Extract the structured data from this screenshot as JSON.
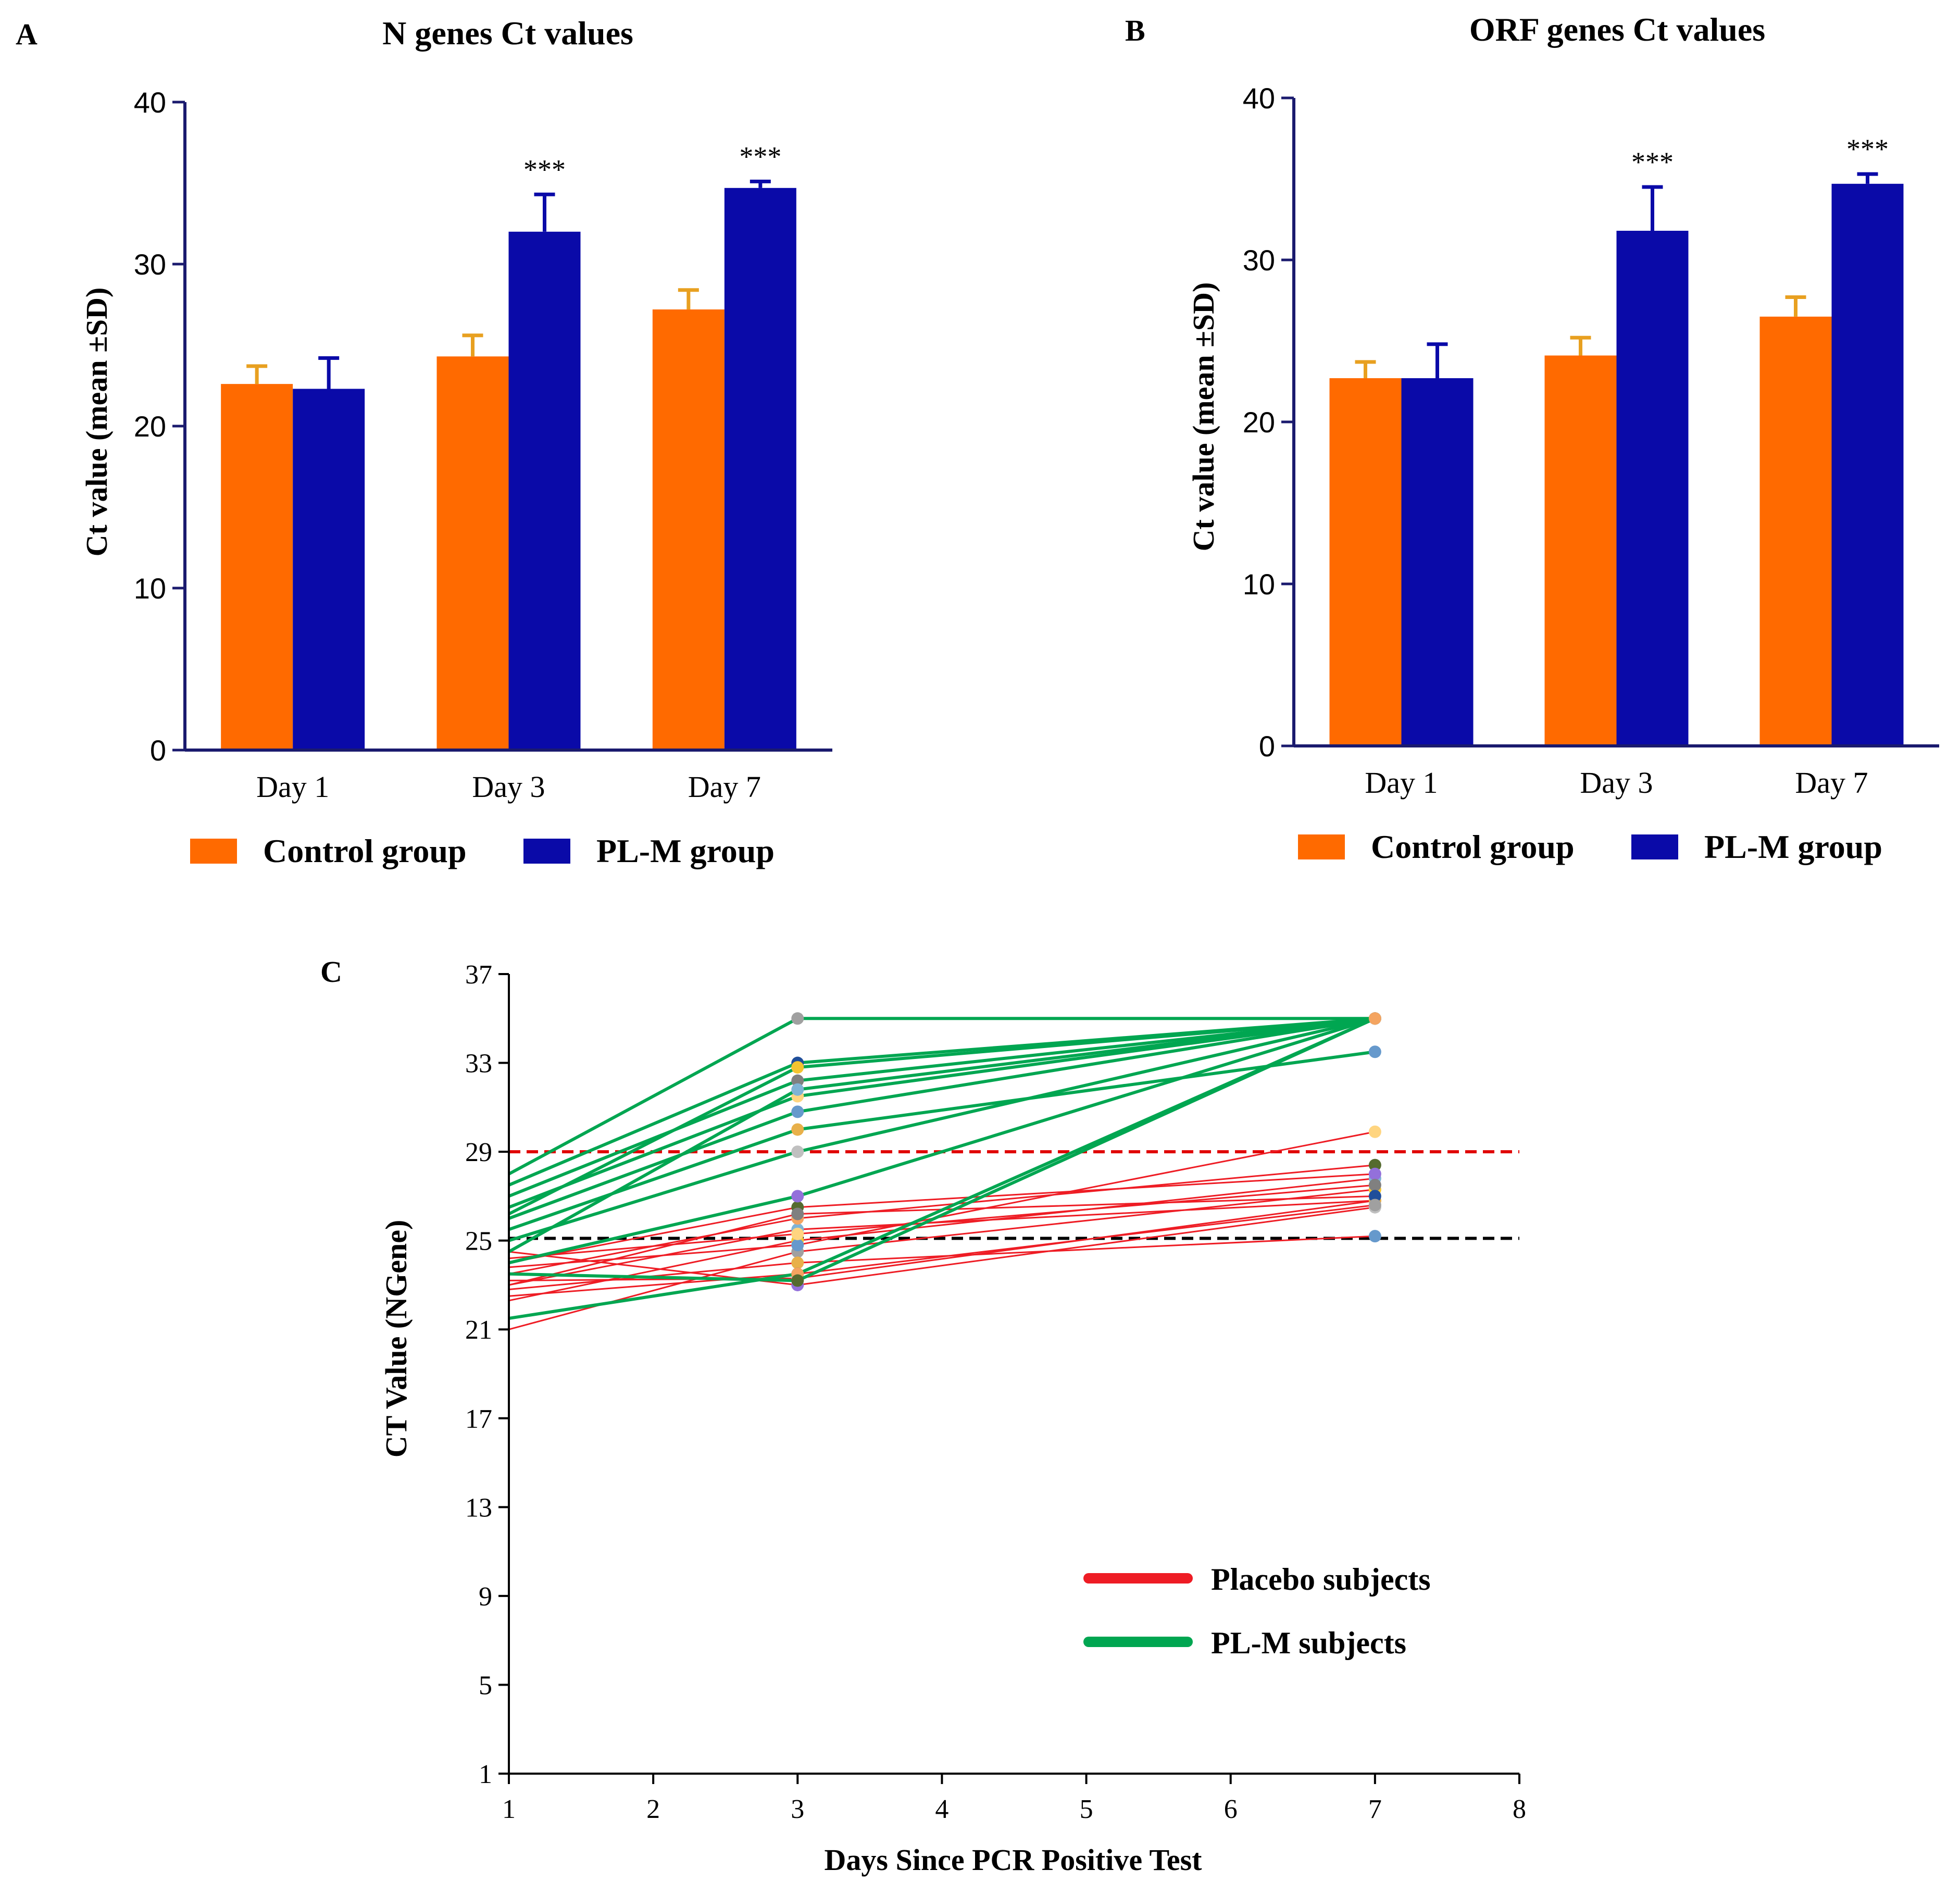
{
  "colors": {
    "control": "#FF6A00",
    "control_err": "#E8A020",
    "plm": "#0A0AA8",
    "axis": "#1a1a6e",
    "placebo_line": "#EE1C24",
    "plm_line": "#00A651",
    "ref_high": "#E00000",
    "ref_low": "#000000"
  },
  "chart_data": [
    {
      "panel": "A",
      "type": "bar",
      "title": "N genes Ct values",
      "ylabel": "Ct value (mean ±SD)",
      "xlabel": "",
      "ylim": [
        0,
        40
      ],
      "yticks": [
        "0",
        "10",
        "20",
        "30",
        "40"
      ],
      "categories": [
        "Day 1",
        "Day 3",
        "Day 7"
      ],
      "series": [
        {
          "name": "Control group",
          "values": [
            22.6,
            24.3,
            27.2
          ],
          "sd": [
            1.1,
            1.3,
            1.2
          ]
        },
        {
          "name": "PL-M group",
          "values": [
            22.3,
            32.0,
            34.7
          ],
          "sd": [
            1.9,
            2.3,
            0.4
          ]
        }
      ],
      "annotations": [
        "",
        "***",
        "***"
      ]
    },
    {
      "panel": "B",
      "type": "bar",
      "title": "ORF genes Ct values",
      "ylabel": "Ct value (mean ±SD)",
      "xlabel": "",
      "ylim": [
        0,
        40
      ],
      "yticks": [
        "0",
        "10",
        "20",
        "30",
        "40"
      ],
      "categories": [
        "Day 1",
        "Day 3",
        "Day 7"
      ],
      "series": [
        {
          "name": "Control group",
          "values": [
            22.7,
            24.1,
            26.5
          ],
          "sd": [
            1.0,
            1.1,
            1.2
          ]
        },
        {
          "name": "PL-M group",
          "values": [
            22.7,
            31.8,
            34.7
          ],
          "sd": [
            2.1,
            2.7,
            0.6
          ]
        }
      ],
      "annotations": [
        "",
        "***",
        "***"
      ]
    },
    {
      "panel": "C",
      "type": "line",
      "title": "",
      "xlabel": "Days Since PCR Positive Test",
      "ylabel": "CT Value (NGene)",
      "xlim": [
        1,
        8
      ],
      "ylim": [
        1,
        37
      ],
      "xticks": [
        "1",
        "2",
        "3",
        "4",
        "5",
        "6",
        "7",
        "8"
      ],
      "yticks": [
        "1",
        "5",
        "9",
        "13",
        "17",
        "21",
        "25",
        "29",
        "33",
        "37"
      ],
      "x": [
        1,
        3,
        7
      ],
      "reference_lines": [
        29,
        25.1
      ],
      "legend": [
        "Placebo subjects",
        "PL-M subjects"
      ],
      "series": [
        {
          "name": "Placebo subjects",
          "subjects": [
            [
              21.0,
              24.5,
              27.3
            ],
            [
              22.3,
              25.0,
              27.8
            ],
            [
              23.0,
              25.5,
              26.8
            ],
            [
              23.5,
              26.0,
              28.4
            ],
            [
              24.0,
              26.5,
              28.0
            ],
            [
              24.5,
              23.0,
              26.5
            ],
            [
              23.2,
              23.3,
              26.8
            ],
            [
              22.8,
              24.0,
              25.2
            ],
            [
              23.8,
              24.8,
              29.9
            ],
            [
              24.2,
              25.3,
              27.5
            ],
            [
              23.0,
              26.2,
              27.0
            ],
            [
              22.5,
              23.5,
              26.6
            ]
          ]
        },
        {
          "name": "PL-M subjects",
          "subjects": [
            [
              21.5,
              23.5,
              35.0
            ],
            [
              23.5,
              23.2,
              35.0
            ],
            [
              24.0,
              27.0,
              35.0
            ],
            [
              25.0,
              29.0,
              35.0
            ],
            [
              25.5,
              30.0,
              33.5
            ],
            [
              26.0,
              30.8,
              35.0
            ],
            [
              26.5,
              31.5,
              35.0
            ],
            [
              27.0,
              32.2,
              35.0
            ],
            [
              27.5,
              33.0,
              35.0
            ],
            [
              28.0,
              35.0,
              35.0
            ],
            [
              26.2,
              32.8,
              35.0
            ],
            [
              24.5,
              31.8,
              35.0
            ]
          ]
        }
      ]
    }
  ]
}
